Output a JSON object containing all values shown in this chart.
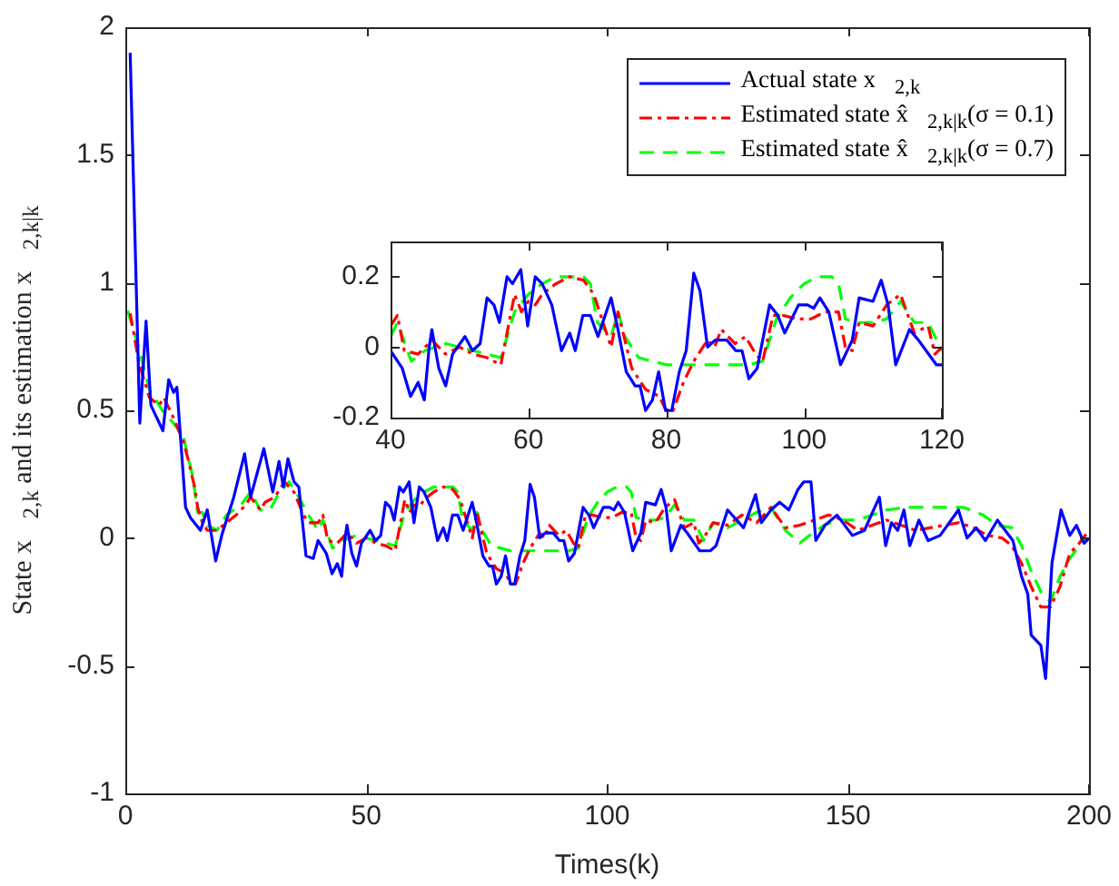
{
  "chart_data": [
    {
      "type": "line",
      "xlabel": "Times(k)",
      "ylabel": "State x⃗$_{2,k}$ and its estimation x⃗$_{2,k|k}$",
      "xlim": [
        0,
        200
      ],
      "xticks": [
        0,
        50,
        100,
        150,
        200
      ],
      "ylim": [
        -1,
        2
      ],
      "yticks": [
        -1,
        -0.5,
        0,
        0.5,
        1,
        1.5,
        2
      ],
      "legend": "top right",
      "series": [
        {
          "name": "Actual state x⃗$_{2,k}$",
          "color": "#0000ff",
          "line_style": "solid",
          "x": [
            1,
            3,
            4.3,
            5.3,
            7.8,
            9,
            10,
            10.7,
            12.5,
            13.5,
            15.6,
            17,
            18.75,
            20,
            22.5,
            24.75,
            26,
            28.75,
            30.6,
            31.9,
            32.8,
            33.75,
            35,
            36,
            37.5,
            39,
            40,
            41.7,
            42.9,
            44,
            44.9,
            45.6,
            46,
            47,
            48,
            49,
            50.8,
            51.9,
            53,
            54,
            55,
            55.8,
            56.9,
            57.7,
            58.9,
            59.9,
            61,
            62,
            63.4,
            64.8,
            66,
            66.8,
            67.9,
            69,
            70.1,
            72,
            72.9,
            74.2,
            75.5,
            76.2,
            77,
            78,
            78.9,
            79.9,
            80.8,
            81.9,
            82.9,
            84,
            84.9,
            86,
            87.1,
            88.8,
            90.1,
            91,
            92,
            93.2,
            95,
            96.2,
            97.2,
            99.2,
            100.5,
            101.4,
            102.3,
            103.6,
            105.3,
            107,
            108,
            110,
            111.2,
            112.2,
            113.3,
            115.3,
            116.6,
            119.2,
            120,
            121.4,
            122.6,
            125,
            128.3,
            130.8,
            132,
            134,
            135.8,
            137.7,
            139.6,
            140.8,
            142.3,
            143.3,
            145.2,
            147.7,
            150.9,
            153.4,
            155.3,
            156.5,
            157.8,
            159,
            160.3,
            161.6,
            162.8,
            164.7,
            166.6,
            169.1,
            172.9,
            174.7,
            176.6,
            178.5,
            181,
            184.2,
            186,
            187.3,
            188,
            190,
            191,
            192.3,
            194.2,
            196,
            197.4,
            199,
            200
          ],
          "values": [
            1.9,
            0.45,
            0.85,
            0.52,
            0.42,
            0.62,
            0.57,
            0.59,
            0.12,
            0.08,
            0.03,
            0.11,
            -0.09,
            0.01,
            0.16,
            0.33,
            0.16,
            0.35,
            0.18,
            0.3,
            0.2,
            0.31,
            0.22,
            0.2,
            -0.07,
            -0.08,
            -0.01,
            -0.06,
            -0.14,
            -0.1,
            -0.15,
            0,
            0.05,
            -0.06,
            -0.11,
            -0.02,
            0.03,
            -0.01,
            0.01,
            0.14,
            0.12,
            0.07,
            0.2,
            0.18,
            0.22,
            0.06,
            0.2,
            0.18,
            0.12,
            -0.01,
            0.04,
            -0.01,
            0.09,
            0.09,
            0.03,
            0.14,
            0.06,
            -0.07,
            -0.11,
            -0.11,
            -0.18,
            -0.15,
            -0.07,
            -0.18,
            -0.18,
            -0.07,
            -0.01,
            0.21,
            0.16,
            0,
            0.02,
            0.02,
            -0.01,
            -0.01,
            -0.09,
            -0.06,
            0.12,
            0.09,
            0.04,
            0.12,
            0.12,
            0.11,
            0.14,
            0.1,
            -0.05,
            0.02,
            0.14,
            0.13,
            0.19,
            0.12,
            -0.05,
            0.05,
            0.02,
            -0.05,
            -0.05,
            -0.05,
            -0.03,
            0.11,
            0.04,
            0.17,
            0.06,
            0.11,
            0.14,
            0.11,
            0.19,
            0.22,
            0.22,
            -0.01,
            0.05,
            0.09,
            0.01,
            0.03,
            0.11,
            0.16,
            -0.03,
            0.06,
            0.03,
            0.11,
            -0.03,
            0.07,
            -0.01,
            0.01,
            0.11,
            0,
            0.04,
            -0.01,
            0.07,
            -0.01,
            -0.15,
            -0.22,
            -0.38,
            -0.42,
            -0.55,
            -0.1,
            0.11,
            0.01,
            0.05,
            -0.02,
            0
          ]
        },
        {
          "name": "Estimated state x̂⃗$_{2,k|k}$(σ = 0.1)",
          "color": "#ff0000",
          "line_style": "dotted",
          "x": [
            1,
            2.9,
            5,
            7,
            8,
            10,
            12,
            13,
            14.5,
            15,
            16,
            17,
            19,
            21,
            23,
            25,
            26,
            28,
            29,
            31,
            33,
            35,
            37,
            38,
            40,
            41,
            42,
            44,
            46,
            48,
            50,
            52,
            54,
            56,
            58,
            59,
            60,
            61,
            62,
            64,
            66,
            68,
            69.5,
            71,
            72,
            73,
            74,
            75,
            77,
            79,
            80,
            81,
            82.5,
            84,
            86,
            87,
            88,
            90,
            91.5,
            93,
            94,
            95.5,
            97,
            99,
            101,
            103,
            105,
            106,
            107,
            108,
            110,
            112,
            114,
            116,
            118,
            119,
            120,
            122,
            125,
            128,
            131,
            134,
            137,
            140,
            143,
            146,
            149,
            152,
            155,
            158,
            161,
            164,
            167,
            170,
            173,
            176,
            179,
            182,
            184,
            186,
            188,
            190,
            192,
            194,
            196,
            198,
            200
          ],
          "values": [
            0.88,
            0.68,
            0.55,
            0.52,
            0.55,
            0.47,
            0.38,
            0.31,
            0.19,
            0.12,
            0.06,
            0.03,
            0.03,
            0.06,
            0.09,
            0.13,
            0.16,
            0.11,
            0.14,
            0.16,
            0.22,
            0.18,
            0.09,
            0.06,
            0.06,
            0.09,
            -0.01,
            -0.02,
            0.02,
            -0.02,
            0,
            -0.02,
            -0.03,
            -0.05,
            0.15,
            0.1,
            0.13,
            0.12,
            0.15,
            0.18,
            0.2,
            0.19,
            0.15,
            0.06,
            0,
            0.1,
            0.02,
            -0.06,
            -0.12,
            -0.14,
            -0.18,
            -0.18,
            -0.1,
            -0.04,
            0.02,
            0,
            0.05,
            0.01,
            0.03,
            -0.02,
            -0.04,
            0.09,
            0.09,
            0.08,
            0.08,
            0.1,
            0.1,
            0,
            -0.01,
            0.07,
            0.06,
            0.12,
            0.15,
            0.04,
            0.06,
            -0.02,
            0,
            0.06,
            0.05,
            0.09,
            0.06,
            0.12,
            0.04,
            0.05,
            0.07,
            0.09,
            0.07,
            0.03,
            0.05,
            0.07,
            0.05,
            0.03,
            0.04,
            0.05,
            0.06,
            0.04,
            0.01,
            0,
            -0.03,
            -0.1,
            -0.19,
            -0.27,
            -0.27,
            -0.19,
            -0.06,
            -0.02,
            0.03
          ]
        },
        {
          "name": "Estimated state x̂⃗$_{2,k|k}$(σ = 0.7)",
          "color": "#00ff00",
          "line_style": "dashed",
          "x": [
            0.5,
            3,
            5,
            8,
            10,
            12,
            14,
            15,
            16,
            17,
            19,
            21,
            24,
            26,
            28,
            30,
            32,
            34,
            36,
            38,
            40,
            41,
            43,
            45,
            48,
            52,
            56,
            58,
            60,
            62,
            64,
            66,
            68,
            69,
            70,
            72,
            73,
            74,
            76,
            78,
            80,
            84,
            88,
            92,
            94,
            96,
            98,
            100,
            102,
            104,
            105,
            106,
            108,
            110,
            112,
            114,
            116,
            118,
            120,
            122,
            125,
            128,
            131,
            134,
            137,
            140,
            142,
            145,
            148,
            152,
            155,
            158,
            162,
            166,
            170,
            174,
            178,
            181,
            184,
            186,
            188,
            190,
            192,
            194,
            196,
            198,
            200
          ],
          "values": [
            0.89,
            0.73,
            0.58,
            0.49,
            0.45,
            0.4,
            0.24,
            0.1,
            0.1,
            0.05,
            0.03,
            0.09,
            0.13,
            0.18,
            0.11,
            0.11,
            0.18,
            0.22,
            0.16,
            0.09,
            0.03,
            0.07,
            -0.04,
            -0.01,
            0.01,
            -0.01,
            -0.03,
            0.1,
            0.15,
            0.18,
            0.2,
            0.2,
            0.2,
            0.18,
            0.07,
            0.03,
            0.1,
            0.03,
            -0.03,
            -0.04,
            -0.05,
            -0.05,
            -0.05,
            -0.05,
            -0.04,
            0.08,
            0.14,
            0.18,
            0.2,
            0.2,
            0.18,
            0.08,
            0.07,
            0.07,
            0.08,
            0.13,
            0.07,
            0.07,
            -0.01,
            0.06,
            0.04,
            0.07,
            0.1,
            0.12,
            0.03,
            -0.02,
            0.01,
            0.05,
            0.07,
            0.07,
            0.09,
            0.11,
            0.12,
            0.12,
            0.12,
            0.12,
            0.09,
            0.05,
            0.04,
            -0.03,
            -0.13,
            -0.21,
            -0.25,
            -0.15,
            -0.08,
            -0.03,
            0
          ]
        }
      ]
    },
    {
      "type": "line",
      "xlim": [
        40,
        120
      ],
      "xticks": [
        40,
        60,
        80,
        100,
        120
      ],
      "ylim": [
        -0.2,
        0.3
      ],
      "yticks": [
        -0.2,
        0,
        0.2
      ],
      "series": [
        {
          "color": "#0000ff",
          "line_style": "solid",
          "x": [
            40,
            41.7,
            42.9,
            44,
            44.9,
            45.6,
            46,
            47,
            48,
            49,
            50.8,
            51.9,
            53,
            54,
            55,
            55.8,
            56.9,
            57.7,
            58.9,
            59.9,
            61,
            62,
            63.4,
            64.8,
            66,
            66.8,
            67.9,
            69,
            70.1,
            72,
            72.9,
            74.2,
            75.5,
            76.2,
            77,
            78,
            78.9,
            79.9,
            80.8,
            81.9,
            82.9,
            84,
            84.9,
            86,
            87.1,
            88.8,
            90.1,
            91,
            92,
            93.2,
            95,
            96.2,
            97.2,
            99.2,
            100.5,
            101.4,
            102.3,
            103.6,
            105.3,
            107,
            108,
            110,
            111.2,
            112.2,
            113.3,
            115.3,
            116.6,
            119.2,
            120
          ],
          "values": [
            -0.01,
            -0.06,
            -0.14,
            -0.1,
            -0.15,
            0,
            0.05,
            -0.06,
            -0.11,
            -0.02,
            0.03,
            -0.01,
            0.01,
            0.14,
            0.12,
            0.07,
            0.2,
            0.18,
            0.22,
            0.06,
            0.2,
            0.18,
            0.12,
            -0.01,
            0.04,
            -0.01,
            0.09,
            0.09,
            0.03,
            0.14,
            0.06,
            -0.07,
            -0.11,
            -0.11,
            -0.18,
            -0.15,
            -0.07,
            -0.18,
            -0.18,
            -0.07,
            -0.01,
            0.21,
            0.16,
            0,
            0.02,
            0.02,
            -0.01,
            -0.01,
            -0.09,
            -0.06,
            0.12,
            0.09,
            0.04,
            0.12,
            0.12,
            0.11,
            0.14,
            0.1,
            -0.05,
            0.02,
            0.14,
            0.13,
            0.19,
            0.12,
            -0.05,
            0.05,
            0.02,
            -0.05,
            -0.05
          ]
        },
        {
          "color": "#ff0000",
          "line_style": "dotted",
          "x": [
            40,
            41,
            42,
            44,
            46,
            48,
            50,
            52,
            54,
            56,
            58,
            59,
            60,
            61,
            62,
            64,
            66,
            68,
            69.5,
            71,
            72,
            73,
            74,
            75,
            77,
            79,
            80,
            81,
            82.5,
            84,
            86,
            87,
            88,
            90,
            91.5,
            93,
            94,
            95.5,
            97,
            99,
            101,
            103,
            105,
            106,
            107,
            108,
            110,
            112,
            114,
            116,
            118,
            119,
            120
          ],
          "values": [
            0.06,
            0.09,
            -0.01,
            -0.02,
            0.02,
            -0.02,
            0,
            -0.02,
            -0.03,
            -0.05,
            0.15,
            0.1,
            0.13,
            0.12,
            0.15,
            0.18,
            0.2,
            0.19,
            0.15,
            0.06,
            0,
            0.1,
            0.02,
            -0.06,
            -0.12,
            -0.14,
            -0.18,
            -0.18,
            -0.1,
            -0.04,
            0.02,
            0,
            0.05,
            0.01,
            0.03,
            -0.02,
            -0.04,
            0.09,
            0.09,
            0.08,
            0.08,
            0.1,
            0.1,
            0,
            -0.01,
            0.07,
            0.06,
            0.12,
            0.15,
            0.04,
            0.06,
            -0.02,
            0
          ]
        },
        {
          "color": "#00ff00",
          "line_style": "dashed",
          "x": [
            40,
            41,
            43,
            45,
            48,
            52,
            56,
            58,
            60,
            62,
            64,
            66,
            68,
            69,
            70,
            72,
            73,
            74,
            76,
            78,
            80,
            84,
            88,
            92,
            94,
            96,
            98,
            100,
            102,
            104,
            105,
            106,
            108,
            110,
            112,
            114,
            116,
            118,
            120
          ],
          "values": [
            0.03,
            0.07,
            -0.04,
            -0.01,
            0.01,
            -0.01,
            -0.03,
            0.1,
            0.15,
            0.18,
            0.2,
            0.2,
            0.2,
            0.18,
            0.07,
            0.03,
            0.1,
            0.03,
            -0.03,
            -0.04,
            -0.05,
            -0.05,
            -0.05,
            -0.05,
            -0.04,
            0.08,
            0.14,
            0.18,
            0.2,
            0.2,
            0.18,
            0.08,
            0.07,
            0.07,
            0.08,
            0.13,
            0.07,
            0.07,
            -0.01
          ]
        }
      ]
    }
  ]
}
